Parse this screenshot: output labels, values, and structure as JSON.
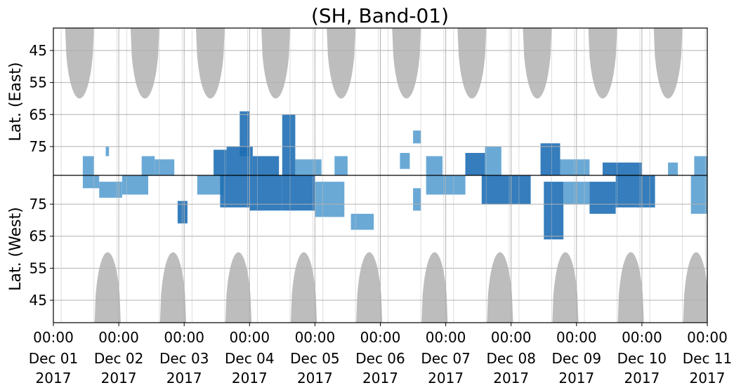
{
  "chart_data": {
    "type": "heatmap",
    "title": "(SH, Band-01)",
    "xlabel": "",
    "x_ticks": [
      {
        "time": "00:00",
        "date": "Dec 01",
        "year": "2017"
      },
      {
        "time": "00:00",
        "date": "Dec 02",
        "year": "2017"
      },
      {
        "time": "00:00",
        "date": "Dec 03",
        "year": "2017"
      },
      {
        "time": "00:00",
        "date": "Dec 04",
        "year": "2017"
      },
      {
        "time": "00:00",
        "date": "Dec 05",
        "year": "2017"
      },
      {
        "time": "00:00",
        "date": "Dec 06",
        "year": "2017"
      },
      {
        "time": "00:00",
        "date": "Dec 07",
        "year": "2017"
      },
      {
        "time": "00:00",
        "date": "Dec 08",
        "year": "2017"
      },
      {
        "time": "00:00",
        "date": "Dec 09",
        "year": "2017"
      },
      {
        "time": "00:00",
        "date": "Dec 10",
        "year": "2017"
      },
      {
        "time": "00:00",
        "date": "Dec 11",
        "year": "2017"
      }
    ],
    "xlim": [
      "2017-12-01 00:00",
      "2017-12-11 00:00"
    ],
    "panels": [
      {
        "id": "east",
        "ylabel": "Lat. (East)",
        "ylim": [
          38,
          84
        ],
        "y_ticks": [
          45,
          55,
          65,
          75
        ],
        "orientation": "latitude decreasing downward from 84 to 38 toward boundary"
      },
      {
        "id": "west",
        "ylabel": "Lat. (West)",
        "ylim": [
          84,
          38
        ],
        "y_ticks": [
          75,
          65,
          55,
          45
        ],
        "orientation": "latitude decreasing downward away from boundary"
      }
    ],
    "grid": true,
    "colors": {
      "daylight_fill": "#bdbdbd",
      "occurrence_strong": "#1f6fb5",
      "occurrence_weak": "#5aa0d2",
      "gridline": "#b0b0b0",
      "divider": "#000000"
    },
    "daylight_east": [
      {
        "center_day": 0.4,
        "half_width_day": 0.22,
        "lat_min": 60
      },
      {
        "center_day": 1.4,
        "half_width_day": 0.22,
        "lat_min": 60
      },
      {
        "center_day": 2.4,
        "half_width_day": 0.22,
        "lat_min": 60
      },
      {
        "center_day": 3.4,
        "half_width_day": 0.22,
        "lat_min": 60
      },
      {
        "center_day": 4.4,
        "half_width_day": 0.22,
        "lat_min": 60
      },
      {
        "center_day": 5.4,
        "half_width_day": 0.22,
        "lat_min": 60
      },
      {
        "center_day": 6.4,
        "half_width_day": 0.22,
        "lat_min": 60
      },
      {
        "center_day": 7.4,
        "half_width_day": 0.22,
        "lat_min": 60
      },
      {
        "center_day": 8.4,
        "half_width_day": 0.22,
        "lat_min": 60
      },
      {
        "center_day": 9.4,
        "half_width_day": 0.22,
        "lat_min": 60
      }
    ],
    "daylight_west": [
      {
        "center_day": 0.83,
        "half_width_day": 0.2,
        "lat_min": 60
      },
      {
        "center_day": 1.83,
        "half_width_day": 0.2,
        "lat_min": 60
      },
      {
        "center_day": 2.83,
        "half_width_day": 0.2,
        "lat_min": 60
      },
      {
        "center_day": 3.83,
        "half_width_day": 0.2,
        "lat_min": 60
      },
      {
        "center_day": 4.83,
        "half_width_day": 0.2,
        "lat_min": 60
      },
      {
        "center_day": 5.83,
        "half_width_day": 0.2,
        "lat_min": 60
      },
      {
        "center_day": 6.83,
        "half_width_day": 0.2,
        "lat_min": 60
      },
      {
        "center_day": 7.83,
        "half_width_day": 0.2,
        "lat_min": 60
      },
      {
        "center_day": 8.83,
        "half_width_day": 0.2,
        "lat_min": 60
      },
      {
        "center_day": 9.83,
        "half_width_day": 0.2,
        "lat_min": 60
      }
    ],
    "observation_gap_days": [
      0.12,
      0.62,
      0.97,
      1.12,
      1.62,
      1.97,
      2.12,
      2.62,
      2.97,
      3.12,
      3.62,
      3.97,
      4.12,
      4.62,
      4.97,
      5.12,
      5.62,
      5.97,
      6.12,
      6.62,
      6.97,
      7.12,
      7.62,
      7.97,
      8.12,
      8.62,
      8.97,
      9.12,
      9.62,
      9.97
    ],
    "occurrence_east": [
      {
        "start_day": 0.45,
        "end_day": 0.62,
        "lat_lo": 78,
        "lat_hi": 84,
        "level": "weak"
      },
      {
        "start_day": 0.8,
        "end_day": 0.85,
        "lat_lo": 75,
        "lat_hi": 78,
        "level": "weak"
      },
      {
        "start_day": 1.35,
        "end_day": 1.55,
        "lat_lo": 78,
        "lat_hi": 84,
        "level": "weak"
      },
      {
        "start_day": 1.55,
        "end_day": 1.85,
        "lat_lo": 79,
        "lat_hi": 84,
        "level": "weak"
      },
      {
        "start_day": 2.45,
        "end_day": 2.65,
        "lat_lo": 76,
        "lat_hi": 84,
        "level": "strong"
      },
      {
        "start_day": 2.65,
        "end_day": 3.05,
        "lat_lo": 75,
        "lat_hi": 84,
        "level": "strong"
      },
      {
        "start_day": 2.85,
        "end_day": 3.0,
        "lat_lo": 64,
        "lat_hi": 78,
        "level": "strong"
      },
      {
        "start_day": 3.05,
        "end_day": 3.45,
        "lat_lo": 78,
        "lat_hi": 84,
        "level": "strong"
      },
      {
        "start_day": 3.5,
        "end_day": 3.7,
        "lat_lo": 65,
        "lat_hi": 84,
        "level": "strong"
      },
      {
        "start_day": 3.7,
        "end_day": 4.1,
        "lat_lo": 79,
        "lat_hi": 84,
        "level": "weak"
      },
      {
        "start_day": 4.3,
        "end_day": 4.5,
        "lat_lo": 78,
        "lat_hi": 84,
        "level": "weak"
      },
      {
        "start_day": 5.3,
        "end_day": 5.45,
        "lat_lo": 77,
        "lat_hi": 82,
        "level": "weak"
      },
      {
        "start_day": 5.5,
        "end_day": 5.62,
        "lat_lo": 70,
        "lat_hi": 74,
        "level": "weak"
      },
      {
        "start_day": 5.7,
        "end_day": 5.95,
        "lat_lo": 78,
        "lat_hi": 84,
        "level": "weak"
      },
      {
        "start_day": 6.3,
        "end_day": 6.6,
        "lat_lo": 77,
        "lat_hi": 84,
        "level": "strong"
      },
      {
        "start_day": 6.6,
        "end_day": 6.85,
        "lat_lo": 75,
        "lat_hi": 84,
        "level": "weak"
      },
      {
        "start_day": 7.45,
        "end_day": 7.75,
        "lat_lo": 74,
        "lat_hi": 84,
        "level": "strong"
      },
      {
        "start_day": 7.75,
        "end_day": 8.2,
        "lat_lo": 79,
        "lat_hi": 84,
        "level": "weak"
      },
      {
        "start_day": 8.4,
        "end_day": 9.0,
        "lat_lo": 80,
        "lat_hi": 84,
        "level": "strong"
      },
      {
        "start_day": 9.4,
        "end_day": 9.55,
        "lat_lo": 80,
        "lat_hi": 84,
        "level": "weak"
      },
      {
        "start_day": 9.8,
        "end_day": 10.0,
        "lat_lo": 78,
        "lat_hi": 84,
        "level": "weak"
      }
    ],
    "occurrence_west": [
      {
        "start_day": 0.45,
        "end_day": 0.7,
        "lat_lo": 80,
        "lat_hi": 84,
        "level": "weak"
      },
      {
        "start_day": 0.7,
        "end_day": 1.05,
        "lat_lo": 77,
        "lat_hi": 82,
        "level": "weak"
      },
      {
        "start_day": 1.05,
        "end_day": 1.45,
        "lat_lo": 78,
        "lat_hi": 84,
        "level": "weak"
      },
      {
        "start_day": 1.9,
        "end_day": 2.05,
        "lat_lo": 69,
        "lat_hi": 76,
        "level": "strong"
      },
      {
        "start_day": 2.2,
        "end_day": 2.6,
        "lat_lo": 78,
        "lat_hi": 84,
        "level": "weak"
      },
      {
        "start_day": 2.55,
        "end_day": 3.0,
        "lat_lo": 74,
        "lat_hi": 84,
        "level": "strong"
      },
      {
        "start_day": 3.0,
        "end_day": 3.5,
        "lat_lo": 73,
        "lat_hi": 84,
        "level": "strong"
      },
      {
        "start_day": 3.5,
        "end_day": 4.0,
        "lat_lo": 73,
        "lat_hi": 84,
        "level": "strong"
      },
      {
        "start_day": 4.0,
        "end_day": 4.45,
        "lat_lo": 71,
        "lat_hi": 82,
        "level": "weak"
      },
      {
        "start_day": 4.55,
        "end_day": 4.9,
        "lat_lo": 67,
        "lat_hi": 72,
        "level": "weak"
      },
      {
        "start_day": 5.5,
        "end_day": 5.62,
        "lat_lo": 73,
        "lat_hi": 80,
        "level": "weak"
      },
      {
        "start_day": 5.7,
        "end_day": 6.3,
        "lat_lo": 78,
        "lat_hi": 84,
        "level": "weak"
      },
      {
        "start_day": 6.55,
        "end_day": 7.3,
        "lat_lo": 75,
        "lat_hi": 84,
        "level": "strong"
      },
      {
        "start_day": 7.5,
        "end_day": 7.8,
        "lat_lo": 64,
        "lat_hi": 82,
        "level": "strong"
      },
      {
        "start_day": 7.8,
        "end_day": 8.2,
        "lat_lo": 75,
        "lat_hi": 82,
        "level": "weak"
      },
      {
        "start_day": 8.2,
        "end_day": 8.6,
        "lat_lo": 72,
        "lat_hi": 82,
        "level": "strong"
      },
      {
        "start_day": 8.6,
        "end_day": 9.2,
        "lat_lo": 74,
        "lat_hi": 84,
        "level": "strong"
      },
      {
        "start_day": 9.75,
        "end_day": 10.0,
        "lat_lo": 72,
        "lat_hi": 84,
        "level": "weak"
      }
    ]
  }
}
